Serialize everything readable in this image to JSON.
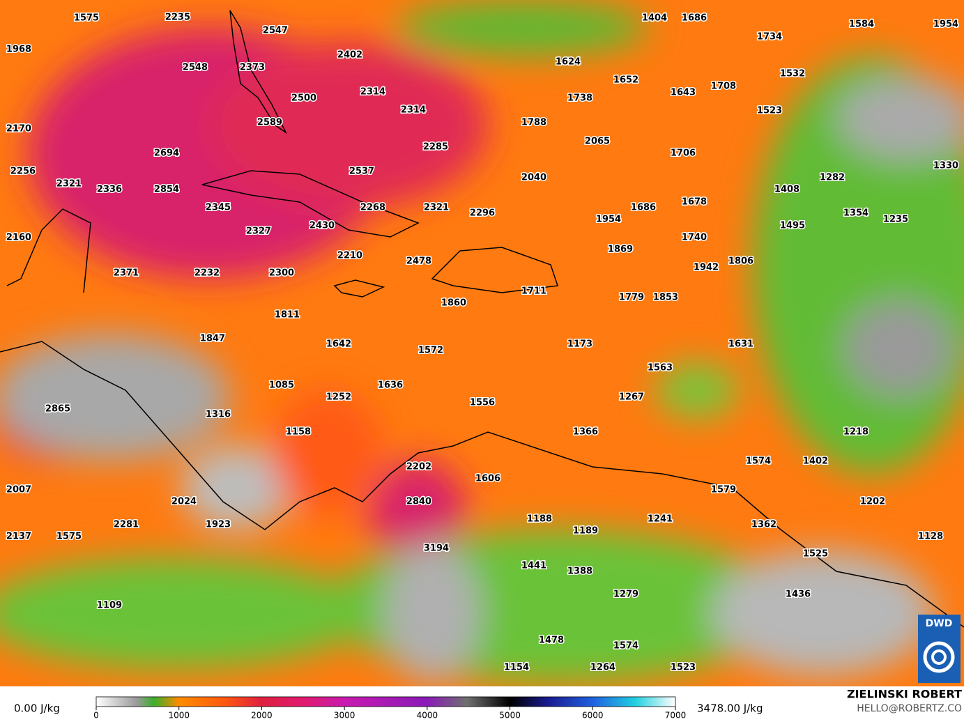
{
  "map": {
    "labels": [
      1575,
      2235,
      2547,
      1968,
      2548,
      2373,
      2402,
      2314,
      2500,
      2314,
      2589,
      2170,
      2694,
      2285,
      2256,
      2321,
      2336,
      2854,
      2537,
      2345,
      2268,
      2321,
      2296,
      2327,
      2430,
      2160,
      2210,
      2478,
      2371,
      2232,
      2300,
      1811,
      1860,
      1847,
      1642,
      1572,
      1085,
      1636,
      1252,
      2865,
      1556,
      1316,
      1158,
      2202,
      1606,
      2007,
      2024,
      2840,
      2281,
      1923,
      2137,
      1575,
      1188,
      1189,
      3194,
      1441,
      1388,
      1109,
      1279,
      1478,
      1574,
      1154,
      1264,
      1523,
      1404,
      1686,
      1734,
      1584,
      1954,
      1624,
      1652,
      1532,
      1738,
      1643,
      1708,
      1523,
      1788,
      2065,
      1706,
      2040,
      1330,
      1408,
      1282,
      1686,
      1678,
      1954,
      1354,
      1235,
      1495,
      1740,
      1869,
      1806,
      1942,
      1711,
      1779,
      1853,
      1173,
      1631,
      1563,
      1267,
      1366,
      1218,
      1574,
      1402,
      1579,
      1202,
      1241,
      1362,
      1128,
      1525,
      1436
    ],
    "logo": "DWD"
  },
  "legend": {
    "min_label": "0.00 J/kg",
    "max_label": "3478.00 J/kg",
    "lim": [
      0,
      7000
    ],
    "ticks": [
      0,
      1000,
      2000,
      3000,
      4000,
      5000,
      6000,
      7000
    ]
  },
  "credit": {
    "author": "ZIELINSKI ROBERT",
    "contact": "HELLO@ROBERTZ.CO"
  }
}
